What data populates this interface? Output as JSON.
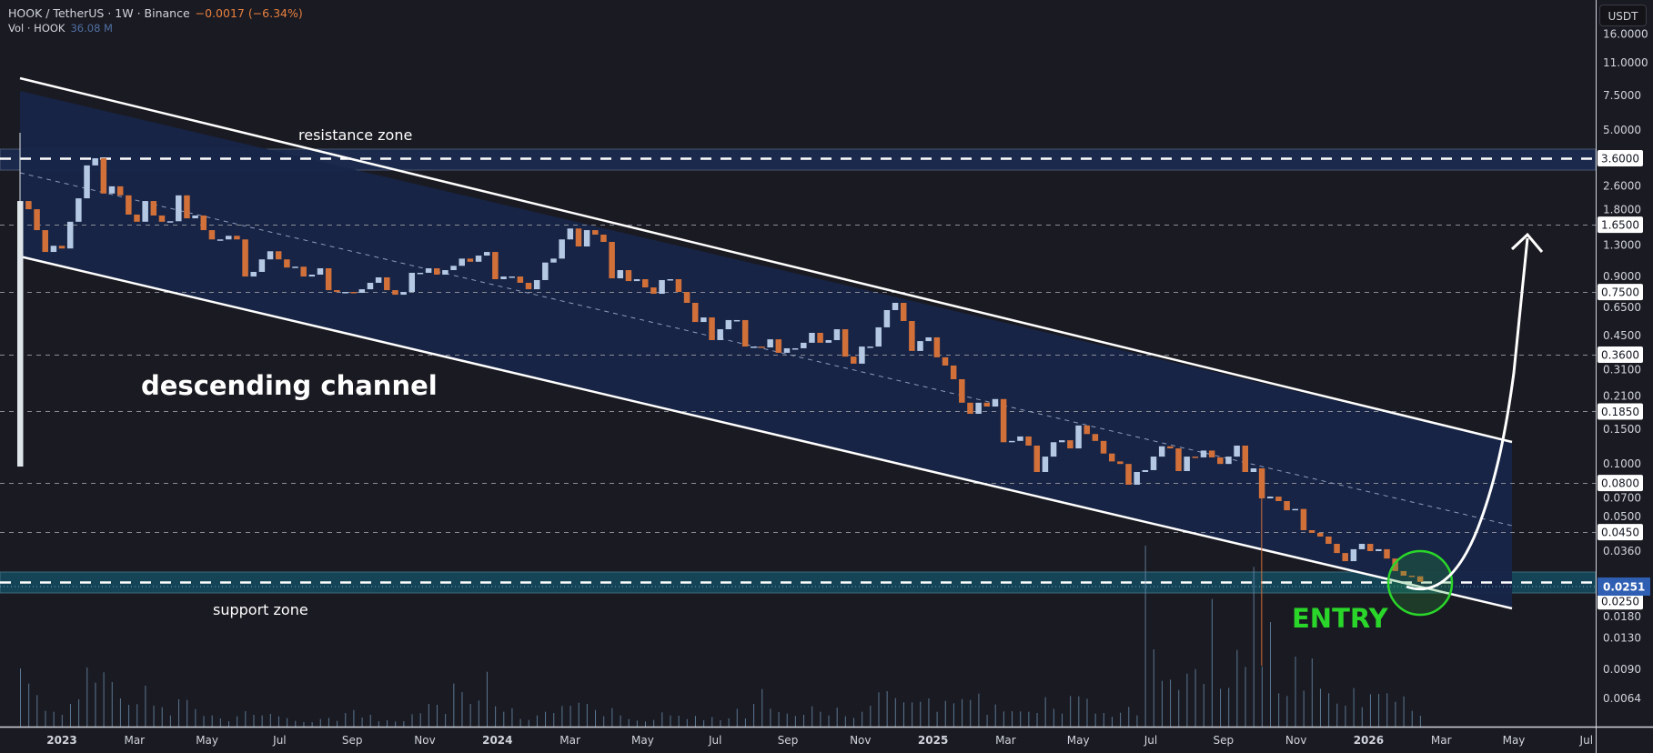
{
  "legend": {
    "title": "HOOK / TetherUS · 1W · Binance",
    "change": "−0.0017 (−6.34%)",
    "volume_label": "Vol · HOOK",
    "volume_value": "36.08 M"
  },
  "currency_button": "USDT",
  "colors": {
    "background": "#1a1a22",
    "up": "#b4c8e4",
    "down": "#d2703a",
    "channel_fill": "#172548",
    "support_zone": "#154457",
    "resistance_zone": "#1b2a4c",
    "entry": "#2ad62a",
    "volume": "#6b8fae",
    "current_price_label": "#2f5fb3"
  },
  "chart_data": {
    "type": "candlestick",
    "symbol": "HOOK / TetherUS",
    "interval": "1W",
    "y_scale": "log",
    "ylim": [
      0.0055,
      17
    ],
    "first_open": 0.097,
    "extremes": [
      {
        "candle": 1,
        "high": 4.85
      },
      {
        "candle": 150,
        "low": 0.0094
      }
    ],
    "closes": [
      2.18,
      1.98,
      1.55,
      1.2,
      1.29,
      1.25,
      1.71,
      2.25,
      3.31,
      3.6,
      2.38,
      2.59,
      2.33,
      1.86,
      1.71,
      2.18,
      1.84,
      1.71,
      1.72,
      2.33,
      1.78,
      1.84,
      1.55,
      1.39,
      1.39,
      1.45,
      1.39,
      0.9,
      0.95,
      1.1,
      1.21,
      1.1,
      1.0,
      1.01,
      0.9,
      0.92,
      0.991,
      0.767,
      0.751,
      0.751,
      0.743,
      0.775,
      0.836,
      0.891,
      0.767,
      0.727,
      0.751,
      0.94,
      0.94,
      0.991,
      0.92,
      0.97,
      1.02,
      1.11,
      1.07,
      1.15,
      1.2,
      0.872,
      0.9,
      0.9,
      0.836,
      0.775,
      0.863,
      1.06,
      1.11,
      1.39,
      1.58,
      1.28,
      1.55,
      1.47,
      1.35,
      0.881,
      0.97,
      0.853,
      0.872,
      0.792,
      0.735,
      0.863,
      0.872,
      0.751,
      0.661,
      0.528,
      0.557,
      0.427,
      0.485,
      0.54,
      0.54,
      0.396,
      0.396,
      0.392,
      0.431,
      0.368,
      0.388,
      0.388,
      0.414,
      0.465,
      0.414,
      0.427,
      0.485,
      0.352,
      0.324,
      0.396,
      0.396,
      0.496,
      0.607,
      0.661,
      0.534,
      0.376,
      0.422,
      0.441,
      0.349,
      0.317,
      0.27,
      0.205,
      0.18,
      0.205,
      0.196,
      0.214,
      0.129,
      0.131,
      0.138,
      0.124,
      0.091,
      0.109,
      0.129,
      0.132,
      0.12,
      0.157,
      0.142,
      0.131,
      0.113,
      0.103,
      0.1,
      0.0784,
      0.091,
      0.093,
      0.109,
      0.123,
      0.12,
      0.092,
      0.109,
      0.108,
      0.117,
      0.108,
      0.1,
      0.109,
      0.124,
      0.091,
      0.095,
      0.0668,
      0.0682,
      0.0647,
      0.0581,
      0.059,
      0.046,
      0.0446,
      0.0427,
      0.0392,
      0.0352,
      0.032,
      0.0368,
      0.0392,
      0.036,
      0.0368,
      0.033,
      0.0285,
      0.027,
      0.0268,
      0.0251
    ],
    "volume_millions": [
      192,
      142,
      104,
      52,
      49,
      39,
      75,
      90,
      195,
      145,
      179,
      147,
      93,
      72,
      74,
      135,
      69,
      64,
      37,
      90,
      88,
      58,
      35,
      37,
      27,
      18,
      34,
      51,
      39,
      37,
      42,
      34,
      28,
      19,
      15,
      15,
      25,
      29,
      19,
      45,
      55,
      30,
      39,
      18,
      21,
      17,
      18,
      41,
      44,
      75,
      72,
      42,
      142,
      114,
      75,
      86,
      181,
      67,
      49,
      61,
      25,
      22,
      37,
      49,
      45,
      68,
      69,
      79,
      75,
      55,
      34,
      61,
      37,
      25,
      20,
      17,
      22,
      47,
      37,
      36,
      25,
      35,
      21,
      32,
      21,
      27,
      59,
      27,
      75,
      124,
      59,
      48,
      43,
      35,
      39,
      67,
      49,
      37,
      63,
      34,
      29,
      49,
      69,
      113,
      117,
      94,
      80,
      80,
      82,
      93,
      49,
      85,
      77,
      91,
      88,
      109,
      39,
      73,
      50,
      51,
      50,
      49,
      45,
      97,
      59,
      43,
      101,
      100,
      92,
      43,
      45,
      32,
      46,
      65,
      37,
      597,
      255,
      151,
      155,
      121,
      175,
      190,
      141,
      421,
      125,
      128,
      253,
      197,
      527,
      199,
      345,
      110,
      101,
      231,
      119,
      225,
      125,
      110,
      76,
      69,
      127,
      64,
      107,
      108,
      110,
      82,
      100,
      52,
      36.08
    ],
    "y_ticks": [
      "16.0000",
      "11.0000",
      "7.5000",
      "5.0000",
      "2.6000",
      "1.8000",
      "1.3000",
      "0.9000",
      "0.6500",
      "0.4500",
      "0.3100",
      "0.2100",
      "0.1500",
      "0.1000",
      "0.0700",
      "0.0500",
      "0.0360",
      "0.0180",
      "0.0130",
      "0.0090",
      "0.0064"
    ],
    "levels": [
      "3.6000",
      "1.6500",
      "0.7500",
      "0.3600",
      "0.1850",
      "0.0800",
      "0.0450",
      "0.0250"
    ],
    "current_price": "0.0251",
    "x_ticks": [
      "2023",
      "Mar",
      "May",
      "Jul",
      "Sep",
      "Nov",
      "2024",
      "Mar",
      "May",
      "Jul",
      "Sep",
      "Nov",
      "2025",
      "Mar",
      "May",
      "Jul",
      "Sep",
      "Nov",
      "2026",
      "Mar",
      "May",
      "Jul"
    ],
    "zones": {
      "resistance": [
        3.3,
        3.95
      ],
      "support": [
        0.024,
        0.0268
      ]
    },
    "annotations": {
      "channel": "descending channel",
      "resistance": "resistance zone",
      "support": "support zone",
      "entry": "ENTRY"
    }
  }
}
